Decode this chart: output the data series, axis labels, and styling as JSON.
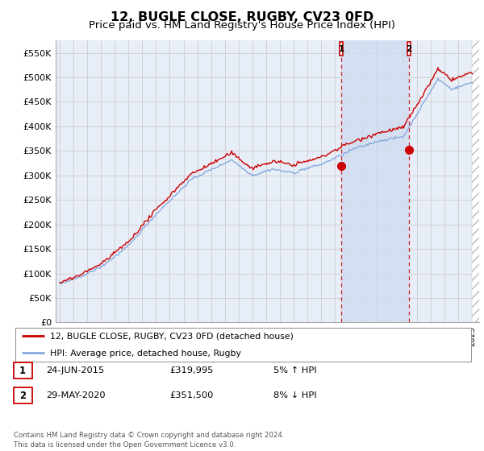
{
  "title": "12, BUGLE CLOSE, RUGBY, CV23 0FD",
  "subtitle": "Price paid vs. HM Land Registry's House Price Index (HPI)",
  "title_fontsize": 11.5,
  "subtitle_fontsize": 9.5,
  "ylim": [
    0,
    575000
  ],
  "yticks": [
    0,
    50000,
    100000,
    150000,
    200000,
    250000,
    300000,
    350000,
    400000,
    450000,
    500000,
    550000
  ],
  "ytick_labels": [
    "£0",
    "£50K",
    "£100K",
    "£150K",
    "£200K",
    "£250K",
    "£300K",
    "£350K",
    "£400K",
    "£450K",
    "£500K",
    "£550K"
  ],
  "xlim_start": 1994.7,
  "xlim_end": 2025.5,
  "bg_color": "#e8eef8",
  "grid_color": "#cccccc",
  "red_color": "#cc0000",
  "blue_color": "#88aadd",
  "shade_color": "#d0dcf0",
  "sale1_year": 2015.48,
  "sale1_price": 319995,
  "sale2_year": 2020.41,
  "sale2_price": 351500,
  "legend_label_red": "12, BUGLE CLOSE, RUGBY, CV23 0FD (detached house)",
  "legend_label_blue": "HPI: Average price, detached house, Rugby",
  "annotation1_date": "24-JUN-2015",
  "annotation1_price": "£319,995",
  "annotation1_hpi": "5% ↑ HPI",
  "annotation2_date": "29-MAY-2020",
  "annotation2_price": "£351,500",
  "annotation2_hpi": "8% ↓ HPI",
  "footer": "Contains HM Land Registry data © Crown copyright and database right 2024.\nThis data is licensed under the Open Government Licence v3.0."
}
